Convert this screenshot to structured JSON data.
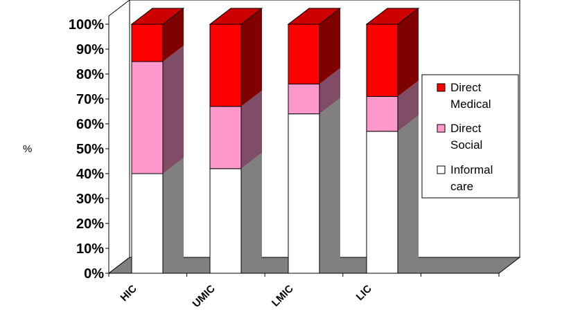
{
  "chart_data": {
    "type": "bar",
    "stacked": true,
    "percent_stacked": true,
    "three_d": true,
    "title": "",
    "xlabel": "",
    "ylabel": "%",
    "ylim": [
      0,
      100
    ],
    "yticks": [
      "0%",
      "10%",
      "20%",
      "30%",
      "40%",
      "50%",
      "60%",
      "70%",
      "80%",
      "90%",
      "100%"
    ],
    "categories": [
      "HIC",
      "UMIC",
      "LMIC",
      "LIC"
    ],
    "series": [
      {
        "name": "Informal care",
        "values": [
          40,
          42,
          64,
          57
        ],
        "color": "#ffffff",
        "side_color": "#808080",
        "top_color": "#d9d9d9"
      },
      {
        "name": "Direct Social",
        "values": [
          45,
          25,
          12,
          14
        ],
        "color": "#ff99cc",
        "side_color": "#804d66",
        "top_color": "#ffcce6"
      },
      {
        "name": "Direct Medical",
        "values": [
          15,
          33,
          24,
          29
        ],
        "color": "#ff0000",
        "side_color": "#800000",
        "top_color": "#cc0000"
      }
    ],
    "legend": {
      "position": "right",
      "entries": [
        {
          "line1": "Direct",
          "line2": "Medical",
          "color": "#ff0000"
        },
        {
          "line1": "Direct",
          "line2": "Social",
          "color": "#ff99cc"
        },
        {
          "line1": "Informal",
          "line2": "care",
          "color": "#ffffff"
        }
      ]
    },
    "colors": {
      "wall_fill": "#ffffff",
      "wall_side": "#ffffff",
      "floor": "#808080",
      "axis": "#000000"
    }
  }
}
